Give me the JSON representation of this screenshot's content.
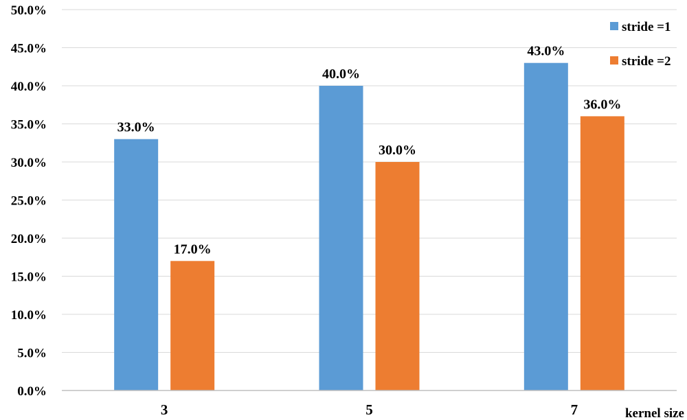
{
  "chart_data": {
    "type": "bar",
    "title": "",
    "xlabel": "kernel size",
    "ylabel": "",
    "categories": [
      "3",
      "5",
      "7"
    ],
    "series": [
      {
        "name": "stride =1",
        "color": "#5b9bd5",
        "values": [
          33.0,
          40.0,
          43.0
        ],
        "labels": [
          "33.0%",
          "40.0%",
          "43.0%"
        ]
      },
      {
        "name": "stride =2",
        "color": "#ed7d31",
        "values": [
          17.0,
          30.0,
          36.0
        ],
        "labels": [
          "17.0%",
          "30.0%",
          "36.0%"
        ]
      }
    ],
    "ylim": [
      0,
      50
    ],
    "yticks": [
      "0.0%",
      "5.0%",
      "10.0%",
      "15.0%",
      "20.0%",
      "25.0%",
      "30.0%",
      "35.0%",
      "40.0%",
      "45.0%",
      "50.0%"
    ],
    "grid": true,
    "legend_position": "top-right"
  }
}
